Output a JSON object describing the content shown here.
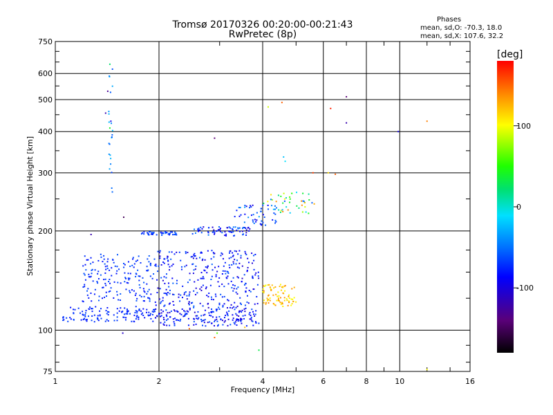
{
  "chart_data": {
    "type": "scatter",
    "title": "Tromsø 20170326 00:20:00-00:21:43",
    "subtitle": "RwPretec (8p)",
    "xlabel": "Frequency [MHz]",
    "ylabel": "Stationary phase Virtual Height [km]",
    "xscale": "log",
    "yscale": "log",
    "xlim": [
      1,
      16
    ],
    "ylim": [
      75,
      750
    ],
    "xticks": [
      "1",
      "2",
      "4",
      "6",
      "8",
      "10",
      "16"
    ],
    "yticks": [
      "75",
      "100",
      "200",
      "300",
      "400",
      "500",
      "600",
      "750"
    ],
    "grid": true,
    "phase_box": {
      "heading": "Phases",
      "line1": "mean, sd,O: -70.3, 18.0",
      "line2": "mean, sd,X: 107.6, 32.2"
    },
    "colorbar": {
      "label": "[deg]",
      "range": [
        -180,
        180
      ],
      "ticks": [
        "100",
        "0",
        "-100"
      ],
      "colormap": "rainbow (black → purple → blue → cyan → green → yellow → orange → red)"
    },
    "clusters": [
      {
        "x": [
          1.05,
          1.95
        ],
        "y": [
          106,
          118
        ],
        "n": 130,
        "phase": [
          -88,
          -64
        ]
      },
      {
        "x": [
          1.2,
          1.95
        ],
        "y": [
          122,
          170
        ],
        "n": 170,
        "phase": [
          -88,
          -58
        ]
      },
      {
        "x": [
          1.95,
          3.9
        ],
        "y": [
          103,
          115
        ],
        "n": 170,
        "phase": [
          -110,
          -60
        ]
      },
      {
        "x": [
          1.95,
          3.9
        ],
        "y": [
          115,
          175
        ],
        "n": 320,
        "phase": [
          -110,
          -55
        ]
      },
      {
        "x": [
          1.75,
          2.25
        ],
        "y": [
          194,
          199
        ],
        "n": 45,
        "phase": [
          -85,
          -55
        ]
      },
      {
        "x": [
          2.5,
          3.7
        ],
        "y": [
          193,
          206
        ],
        "n": 70,
        "phase": [
          -110,
          -45
        ]
      },
      {
        "x": [
          3.3,
          4.4
        ],
        "y": [
          208,
          240
        ],
        "n": 50,
        "phase": [
          -100,
          -30
        ]
      },
      {
        "x": [
          4.0,
          5.7
        ],
        "y": [
          225,
          262
        ],
        "n": 45,
        "phase": [
          -60,
          140
        ]
      },
      {
        "x": [
          4.0,
          5.0
        ],
        "y": [
          118,
          138
        ],
        "n": 80,
        "phase": [
          95,
          140
        ]
      },
      {
        "x": [
          1.43,
          1.47
        ],
        "y": [
          250,
          620
        ],
        "n": 22,
        "phase": [
          -70,
          -20
        ]
      }
    ],
    "stray_points": [
      {
        "x": 1.44,
        "y": 640,
        "phase": 20
      },
      {
        "x": 1.42,
        "y": 530,
        "phase": -130
      },
      {
        "x": 1.4,
        "y": 455,
        "phase": -120
      },
      {
        "x": 1.45,
        "y": 430,
        "phase": -100
      },
      {
        "x": 1.44,
        "y": 410,
        "phase": 40
      },
      {
        "x": 1.46,
        "y": 385,
        "phase": -60
      },
      {
        "x": 1.58,
        "y": 220,
        "phase": -150
      },
      {
        "x": 1.27,
        "y": 195,
        "phase": -120
      },
      {
        "x": 1.57,
        "y": 98,
        "phase": -110
      },
      {
        "x": 2.9,
        "y": 382,
        "phase": -140
      },
      {
        "x": 4.15,
        "y": 475,
        "phase": 90
      },
      {
        "x": 4.55,
        "y": 490,
        "phase": 150
      },
      {
        "x": 6.3,
        "y": 470,
        "phase": 170
      },
      {
        "x": 7.0,
        "y": 510,
        "phase": -140
      },
      {
        "x": 7.0,
        "y": 425,
        "phase": -120
      },
      {
        "x": 9.9,
        "y": 400,
        "phase": -100
      },
      {
        "x": 12.0,
        "y": 430,
        "phase": 140
      },
      {
        "x": 6.5,
        "y": 297,
        "phase": 150
      },
      {
        "x": 6.2,
        "y": 300,
        "phase": 110
      },
      {
        "x": 5.6,
        "y": 300,
        "phase": 160
      },
      {
        "x": 4.6,
        "y": 335,
        "phase": -20
      },
      {
        "x": 4.65,
        "y": 325,
        "phase": -10
      },
      {
        "x": 2.9,
        "y": 95,
        "phase": 150
      },
      {
        "x": 2.95,
        "y": 98,
        "phase": 60
      },
      {
        "x": 3.55,
        "y": 102,
        "phase": 120
      },
      {
        "x": 3.9,
        "y": 87,
        "phase": 30
      },
      {
        "x": 2.45,
        "y": 101,
        "phase": 150
      },
      {
        "x": 12.0,
        "y": 76,
        "phase": 100
      }
    ]
  }
}
